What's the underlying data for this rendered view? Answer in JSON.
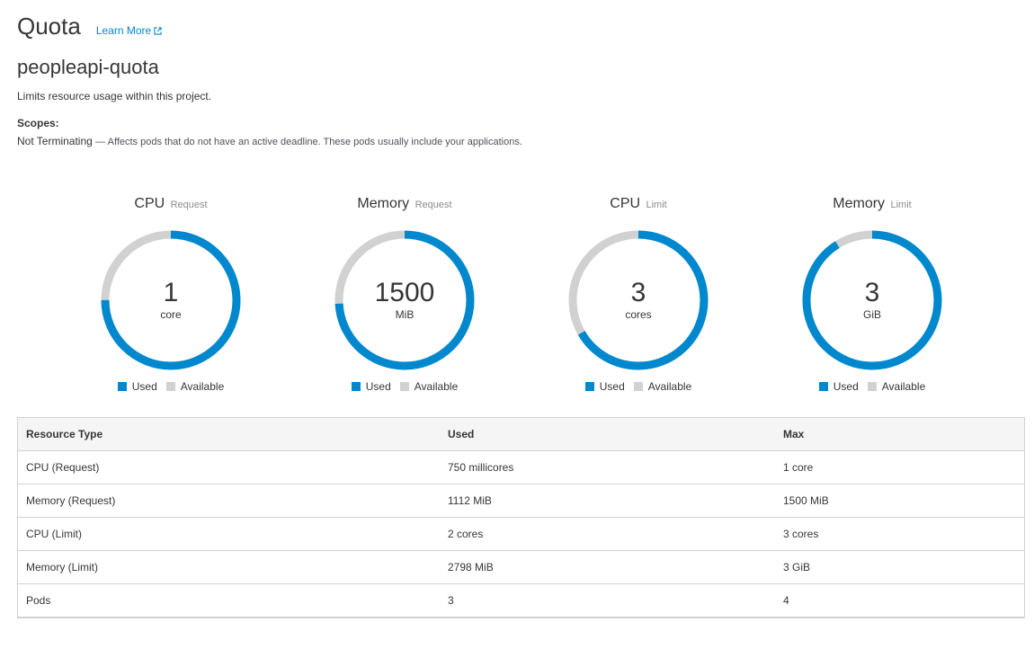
{
  "header": {
    "title": "Quota",
    "learn_more": "Learn More"
  },
  "quota": {
    "name": "peopleapi-quota",
    "description": "Limits resource usage within this project.",
    "scopes_label": "Scopes:",
    "scope_name": "Not Terminating",
    "scope_description": "— Affects pods that do not have an active deadline. These pods usually include your applications."
  },
  "colors": {
    "used": "#0088ce",
    "available": "#d1d1d1"
  },
  "legend": {
    "used": "Used",
    "available": "Available"
  },
  "charts": [
    {
      "title": "CPU",
      "qualifier": "Request",
      "value": "1",
      "unit": "core",
      "used_fraction": 0.75
    },
    {
      "title": "Memory",
      "qualifier": "Request",
      "value": "1500",
      "unit": "MiB",
      "used_fraction": 0.7413
    },
    {
      "title": "CPU",
      "qualifier": "Limit",
      "value": "3",
      "unit": "cores",
      "used_fraction": 0.6667
    },
    {
      "title": "Memory",
      "qualifier": "Limit",
      "value": "3",
      "unit": "GiB",
      "used_fraction": 0.9108
    }
  ],
  "table": {
    "headers": [
      "Resource Type",
      "Used",
      "Max"
    ],
    "rows": [
      [
        "CPU (Request)",
        "750 millicores",
        "1 core"
      ],
      [
        "Memory (Request)",
        "1112 MiB",
        "1500 MiB"
      ],
      [
        "CPU (Limit)",
        "2 cores",
        "3 cores"
      ],
      [
        "Memory (Limit)",
        "2798 MiB",
        "3 GiB"
      ],
      [
        "Pods",
        "3",
        "4"
      ]
    ]
  }
}
